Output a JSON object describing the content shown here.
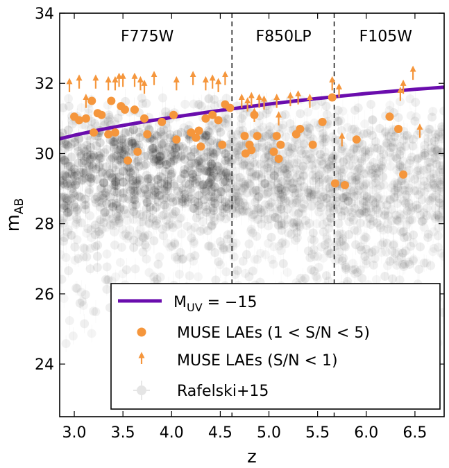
{
  "chart_data": {
    "type": "scatter",
    "xlabel": "z",
    "ylabel_main": "m",
    "ylabel_sub": "AB",
    "xlim": [
      2.85,
      6.8
    ],
    "ylim": [
      22.5,
      34
    ],
    "xticks": [
      3.0,
      3.5,
      4.0,
      4.5,
      5.0,
      5.5,
      6.0,
      6.5
    ],
    "xtick_labels": [
      "3.0",
      "3.5",
      "4.0",
      "4.5",
      "5.0",
      "5.5",
      "6.0",
      "6.5"
    ],
    "yticks": [
      24,
      26,
      28,
      30,
      32,
      34
    ],
    "ytick_labels": [
      "24",
      "26",
      "28",
      "30",
      "32",
      "34"
    ],
    "grid": false,
    "legend_position": "lower-right",
    "bands": [
      {
        "label": "F775W",
        "x_center": 3.75
      },
      {
        "label": "F850LP",
        "x_center": 5.15
      },
      {
        "label": "F105W",
        "x_center": 6.2
      }
    ],
    "band_boundaries": [
      4.62,
      5.67
    ],
    "colors": {
      "curve": "#6a0dad",
      "muse": "#f5963c",
      "rafelski": "#000000"
    },
    "curve": {
      "name_main": "M",
      "name_sub": "UV",
      "name_suffix": " = −15",
      "x": [
        2.85,
        3.0,
        3.25,
        3.5,
        3.75,
        4.0,
        4.25,
        4.5,
        4.75,
        5.0,
        5.25,
        5.5,
        5.75,
        6.0,
        6.25,
        6.5,
        6.8
      ],
      "y": [
        30.42,
        30.52,
        30.67,
        30.8,
        30.92,
        31.03,
        31.13,
        31.23,
        31.32,
        31.41,
        31.49,
        31.57,
        31.64,
        31.71,
        31.77,
        31.83,
        31.89
      ]
    },
    "series": [
      {
        "name": "MUSE LAEs (1 < S/N < 5)",
        "marker": "circle",
        "x": [
          3.0,
          3.05,
          3.12,
          3.18,
          3.2,
          3.24,
          3.28,
          3.35,
          3.38,
          3.42,
          3.48,
          3.52,
          3.55,
          3.62,
          3.65,
          3.72,
          3.75,
          3.9,
          4.02,
          4.05,
          4.2,
          4.25,
          4.28,
          4.3,
          4.35,
          4.42,
          4.48,
          4.52,
          4.55,
          4.6,
          4.75,
          4.76,
          4.8,
          4.82,
          4.85,
          4.88,
          5.05,
          5.08,
          5.1,
          5.12,
          5.28,
          5.32,
          5.45,
          5.55,
          5.65,
          5.68,
          5.78,
          5.9,
          6.24,
          6.33,
          6.38
        ],
        "y": [
          31.05,
          30.95,
          31.0,
          31.5,
          30.6,
          31.15,
          31.1,
          30.55,
          31.5,
          30.6,
          31.35,
          31.25,
          29.8,
          31.25,
          30.05,
          31.0,
          30.55,
          30.9,
          31.1,
          30.4,
          30.6,
          30.45,
          30.65,
          30.2,
          31.0,
          31.1,
          30.95,
          30.25,
          31.4,
          31.3,
          30.5,
          30.0,
          30.25,
          30.1,
          31.1,
          30.5,
          30.05,
          30.5,
          29.85,
          30.25,
          30.55,
          30.7,
          30.25,
          30.9,
          31.6,
          29.15,
          29.1,
          30.4,
          31.05,
          30.7,
          29.4
        ]
      },
      {
        "name": "MUSE LAEs (S/N < 1)",
        "marker": "arrow-up",
        "x": [
          2.95,
          3.05,
          3.12,
          3.22,
          3.35,
          3.42,
          3.46,
          3.5,
          3.62,
          3.68,
          3.72,
          3.82,
          4.05,
          4.22,
          4.35,
          4.42,
          4.48,
          4.55,
          4.72,
          4.78,
          4.82,
          4.85,
          4.9,
          4.95,
          5.08,
          5.1,
          5.22,
          5.3,
          5.42,
          5.65,
          5.72,
          5.75,
          6.35,
          6.38,
          6.48,
          6.55
        ],
        "y": [
          31.75,
          31.85,
          31.3,
          31.85,
          31.8,
          31.8,
          31.9,
          31.9,
          31.9,
          31.8,
          31.7,
          31.95,
          31.8,
          31.95,
          31.8,
          31.85,
          31.75,
          31.95,
          31.3,
          31.2,
          31.35,
          30.9,
          31.3,
          31.25,
          31.3,
          30.8,
          31.35,
          31.4,
          31.3,
          31.8,
          31.6,
          30.2,
          31.5,
          31.7,
          32.1,
          30.45
        ]
      },
      {
        "name": "Rafelski+15",
        "marker": "circle-faint"
      }
    ]
  }
}
